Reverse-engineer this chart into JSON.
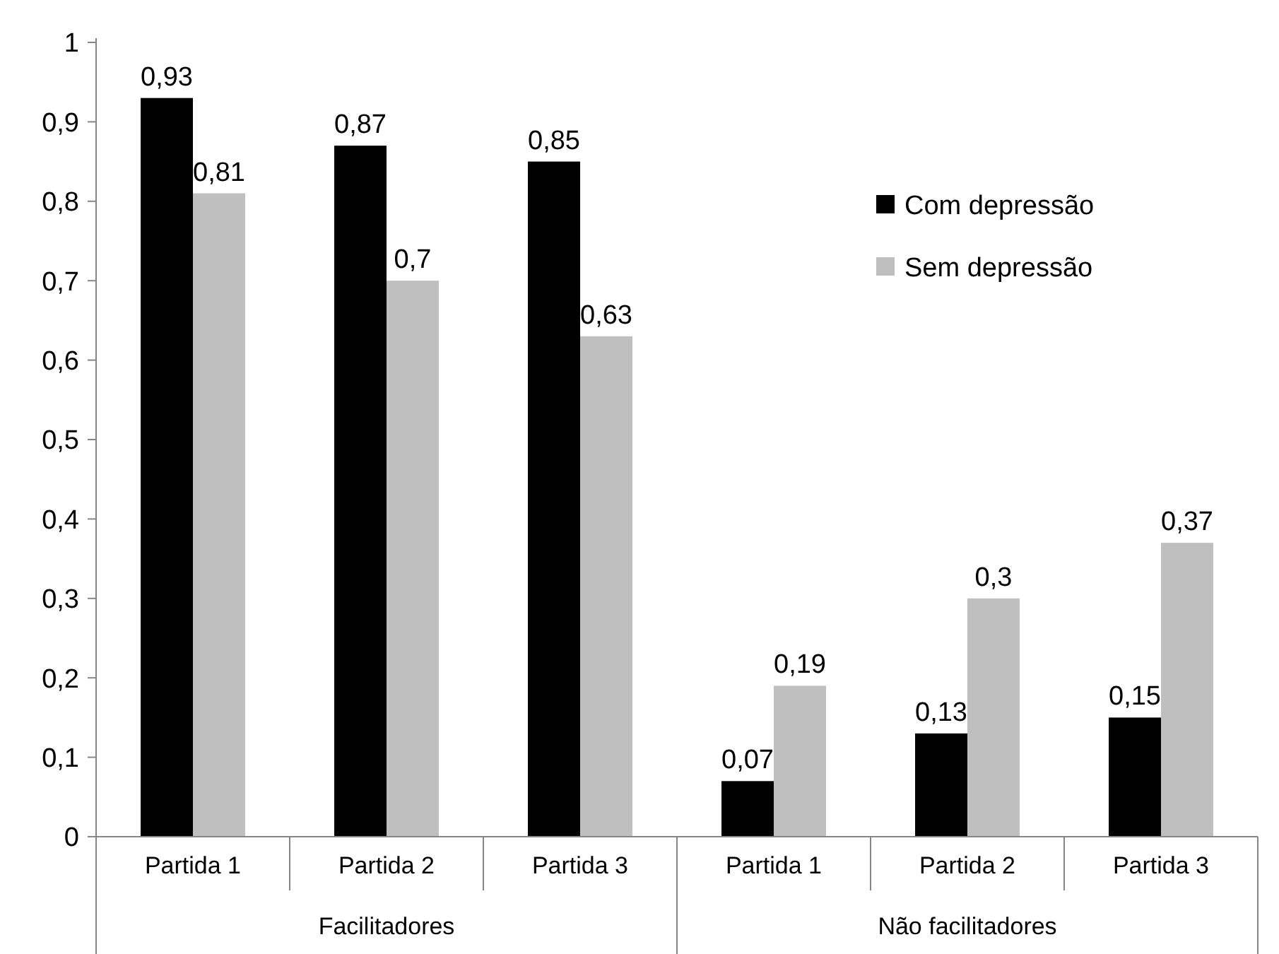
{
  "chart_data": {
    "type": "bar",
    "categories": [
      "Partida 1",
      "Partida 2",
      "Partida 3",
      "Partida 1",
      "Partida 2",
      "Partida 3"
    ],
    "series": [
      {
        "name": "Com depressão",
        "color": "#000000",
        "values": [
          0.93,
          0.87,
          0.85,
          0.07,
          0.13,
          0.15
        ],
        "value_labels": [
          "0,93",
          "0,87",
          "0,85",
          "0,07",
          "0,13",
          "0,15"
        ]
      },
      {
        "name": "Sem depressão",
        "color": "#bfbfbf",
        "values": [
          0.81,
          0.7,
          0.63,
          0.19,
          0.3,
          0.37
        ],
        "value_labels": [
          "0,81",
          "0,7",
          "0,63",
          "0,19",
          "0,3",
          "0,37"
        ]
      }
    ],
    "ylim": [
      0,
      1
    ],
    "yticks": [
      0,
      {
        "value": 0.1,
        "label": "0,1"
      },
      {
        "value": 0.2,
        "label": "0,2"
      },
      {
        "value": 0.3,
        "label": "0,3"
      },
      {
        "value": 0.4,
        "label": "0,4"
      },
      {
        "value": 0.5,
        "label": "0,5"
      },
      {
        "value": 0.6,
        "label": "0,6"
      },
      {
        "value": 0.7,
        "label": "0,7"
      },
      {
        "value": 0.8,
        "label": "0,8"
      },
      {
        "value": 0.9,
        "label": "0,9"
      },
      1
    ],
    "annotations": [
      "Facilitadores",
      "Não facilitadores"
    ],
    "grid": false,
    "legend": "top right"
  }
}
